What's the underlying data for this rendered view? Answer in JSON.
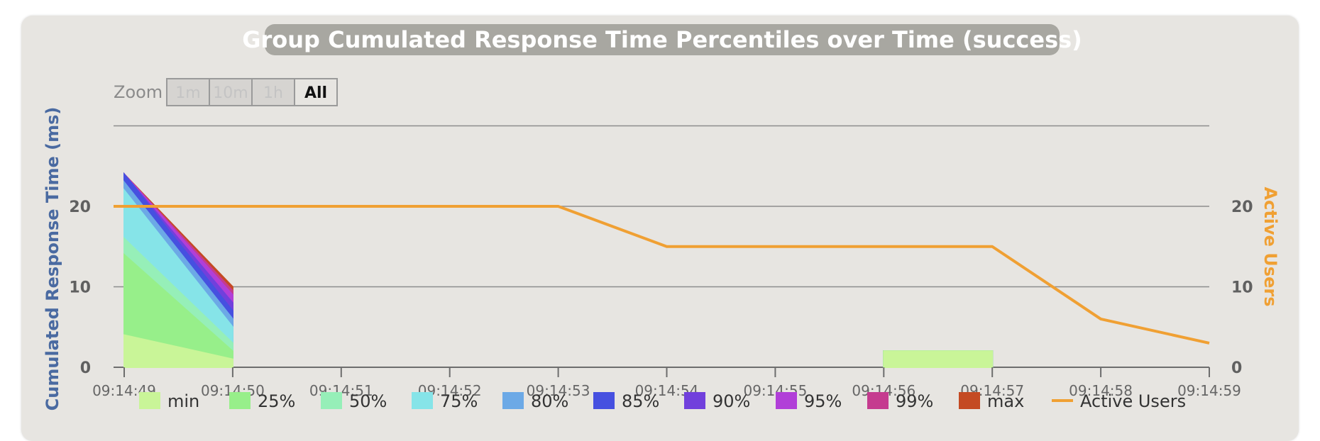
{
  "chart_data": {
    "type": "area",
    "title": "Group Cumulated Response Time Percentiles over Time (success)",
    "ylabel": "Cumulated Response Time (ms)",
    "y2label": "Active Users",
    "ylim": [
      0,
      30
    ],
    "y2lim": [
      0,
      30
    ],
    "yticks": [
      0,
      10,
      20
    ],
    "y2ticks": [
      0,
      10,
      20
    ],
    "grid": true,
    "legend_placement": "bottom",
    "x": [
      "09:14:49",
      "09:14:50",
      "09:14:51",
      "09:14:52",
      "09:14:53",
      "09:14:54",
      "09:14:55",
      "09:14:56",
      "09:14:57",
      "09:14:58",
      "09:14:59"
    ],
    "area_series": [
      {
        "name": "min",
        "color": "#c9f598",
        "segments": [
          [
            [
              0,
              4
            ],
            [
              1,
              1
            ]
          ],
          [
            [
              7,
              2
            ],
            [
              8,
              2
            ]
          ]
        ]
      },
      {
        "name": "25%",
        "color": "#97ef8a",
        "segments": [
          [
            [
              0,
              14
            ],
            [
              1,
              2
            ]
          ],
          [
            [
              7,
              2
            ],
            [
              8,
              2
            ]
          ]
        ]
      },
      {
        "name": "50%",
        "color": "#96efb8",
        "segments": [
          [
            [
              0,
              16
            ],
            [
              1,
              3
            ]
          ],
          [
            [
              7,
              2
            ],
            [
              8,
              2
            ]
          ]
        ]
      },
      {
        "name": "75%",
        "color": "#86e4e8",
        "segments": [
          [
            [
              0,
              22
            ],
            [
              1,
              5
            ]
          ],
          [
            [
              7,
              2
            ],
            [
              8,
              2
            ]
          ]
        ]
      },
      {
        "name": "80%",
        "color": "#6ca9e6",
        "segments": [
          [
            [
              0,
              23
            ],
            [
              1,
              6
            ]
          ],
          [
            [
              7,
              2
            ],
            [
              8,
              2
            ]
          ]
        ]
      },
      {
        "name": "85%",
        "color": "#4650e0",
        "segments": [
          [
            [
              0,
              24
            ],
            [
              1,
              7
            ]
          ],
          [
            [
              7,
              2
            ],
            [
              8,
              2
            ]
          ]
        ]
      },
      {
        "name": "90%",
        "color": "#7140dc",
        "segments": [
          [
            [
              0,
              24
            ],
            [
              1,
              8
            ]
          ],
          [
            [
              7,
              2
            ],
            [
              8,
              2
            ]
          ]
        ]
      },
      {
        "name": "95%",
        "color": "#b13fd8",
        "segments": [
          [
            [
              0,
              24
            ],
            [
              1,
              9
            ]
          ],
          [
            [
              7,
              2
            ],
            [
              8,
              2
            ]
          ]
        ]
      },
      {
        "name": "99%",
        "color": "#c53b8f",
        "segments": [
          [
            [
              0,
              24
            ],
            [
              1,
              9.5
            ]
          ],
          [
            [
              7,
              2
            ],
            [
              8,
              2
            ]
          ]
        ]
      },
      {
        "name": "max",
        "color": "#c44a23",
        "segments": [
          [
            [
              0,
              24
            ],
            [
              1,
              10
            ]
          ],
          [
            [
              7,
              2
            ],
            [
              8,
              2
            ]
          ]
        ]
      }
    ],
    "line_series": {
      "name": "Active Users",
      "color": "#f0a033",
      "values": [
        20,
        20,
        20,
        20,
        20,
        15,
        15,
        15,
        15,
        6,
        3
      ]
    }
  },
  "zoom": {
    "label": "Zoom",
    "buttons": [
      {
        "label": "1m",
        "active": false
      },
      {
        "label": "10m",
        "active": false
      },
      {
        "label": "1h",
        "active": false
      },
      {
        "label": "All",
        "active": true
      }
    ]
  }
}
